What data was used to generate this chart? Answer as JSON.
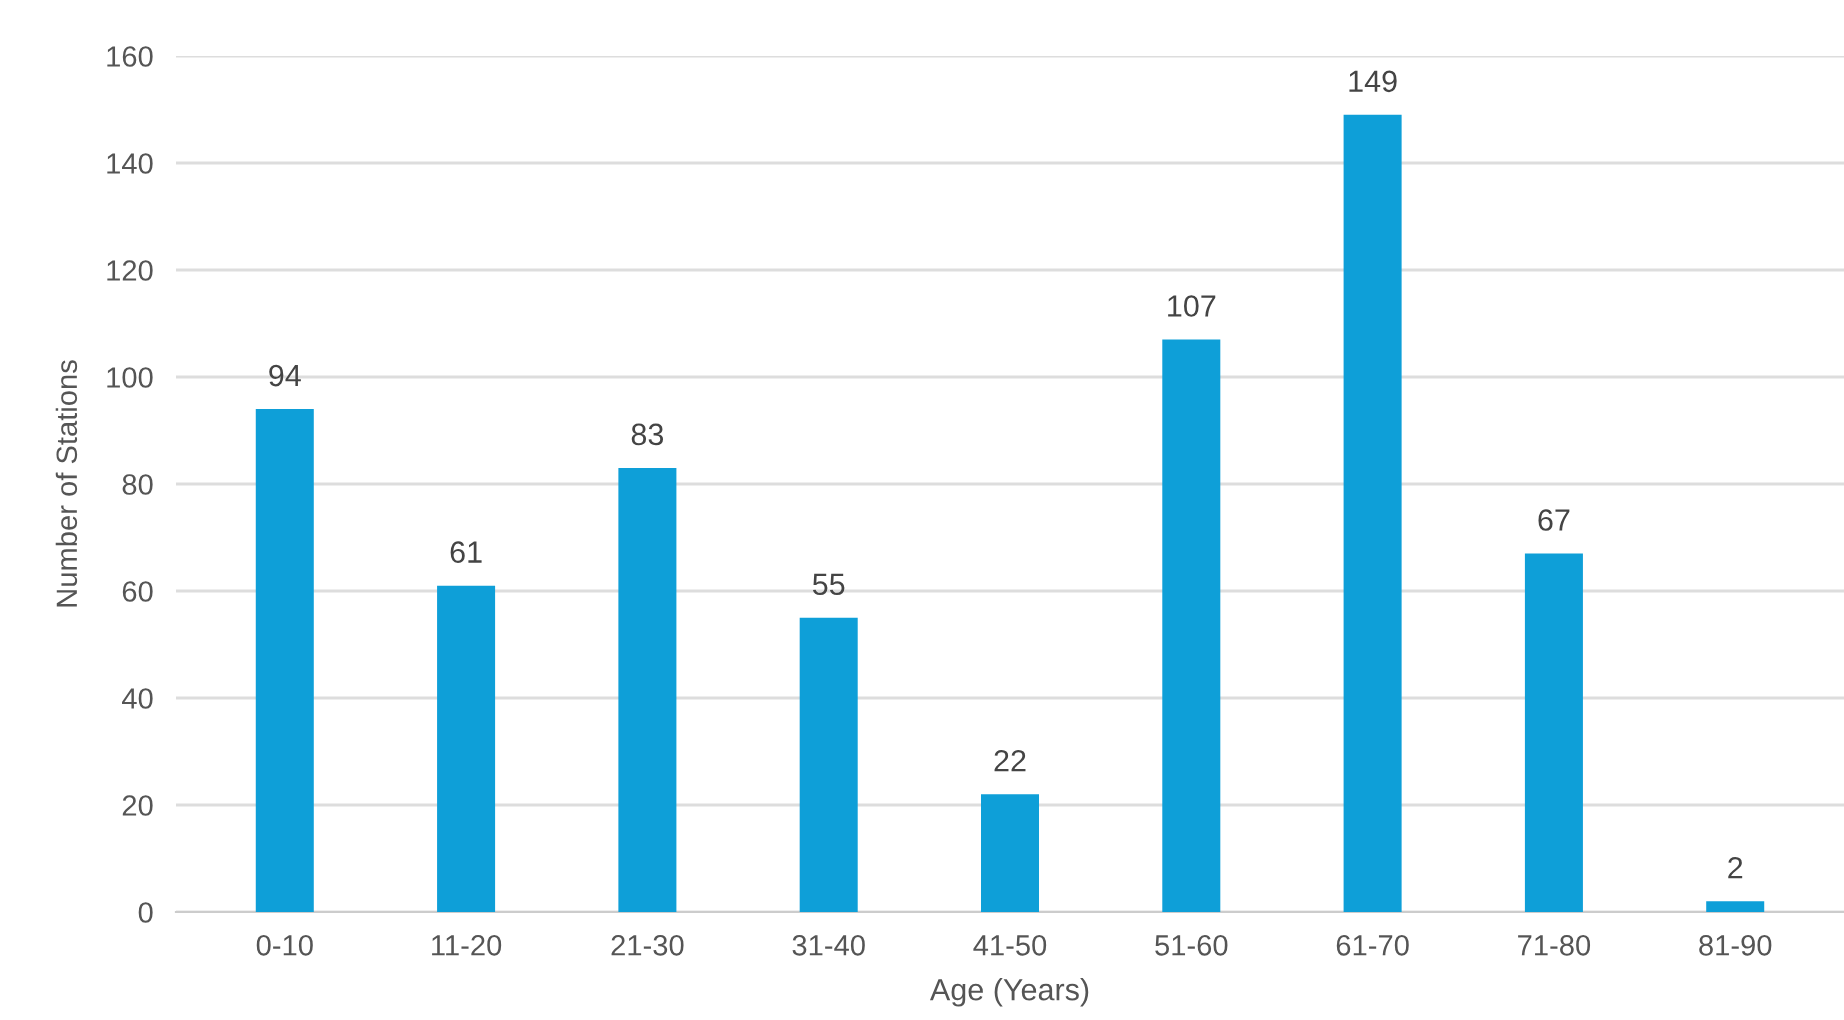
{
  "chart_data": {
    "type": "bar",
    "xlabel": "Age (Years)",
    "ylabel": "Number of Stations",
    "categories": [
      "0-10",
      "11-20",
      "21-30",
      "31-40",
      "41-50",
      "51-60",
      "61-70",
      "71-80",
      "81-90"
    ],
    "values": [
      94,
      61,
      83,
      55,
      22,
      107,
      149,
      67,
      2
    ],
    "color": "#0e9fd8",
    "ylim": [
      0,
      160
    ],
    "yticks": [
      0,
      20,
      40,
      60,
      80,
      100,
      120,
      140,
      160
    ],
    "grid": "y",
    "data_labels": true
  }
}
